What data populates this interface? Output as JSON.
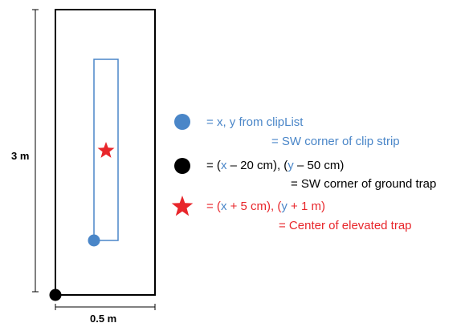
{
  "dimensions": {
    "height_label": "3 m",
    "width_label": "0.5 m"
  },
  "legend": {
    "clip_point": {
      "eq": "= ",
      "x": "x",
      "sep": ", ",
      "y": "y",
      "rest": " from clipList",
      "meaning": "= SW corner of clip strip"
    },
    "ground_trap": {
      "eq": "= (",
      "x": "x",
      "x_offset": " – 20 cm), (",
      "y": "y",
      "y_offset": " – 50 cm)",
      "meaning": "= SW corner of ground trap"
    },
    "elevated_trap": {
      "eq": "= (",
      "x": "x",
      "x_offset": " + 5 cm), (",
      "y": "y",
      "y_offset": " + 1 m)",
      "meaning": "= Center of elevated trap"
    }
  },
  "colors": {
    "blue": "#4a86c8",
    "black": "#000000",
    "red": "#e8262b"
  },
  "icons": {
    "clip_point": "blue-dot-icon",
    "ground_trap": "black-dot-icon",
    "elevated_trap": "red-star-icon"
  }
}
